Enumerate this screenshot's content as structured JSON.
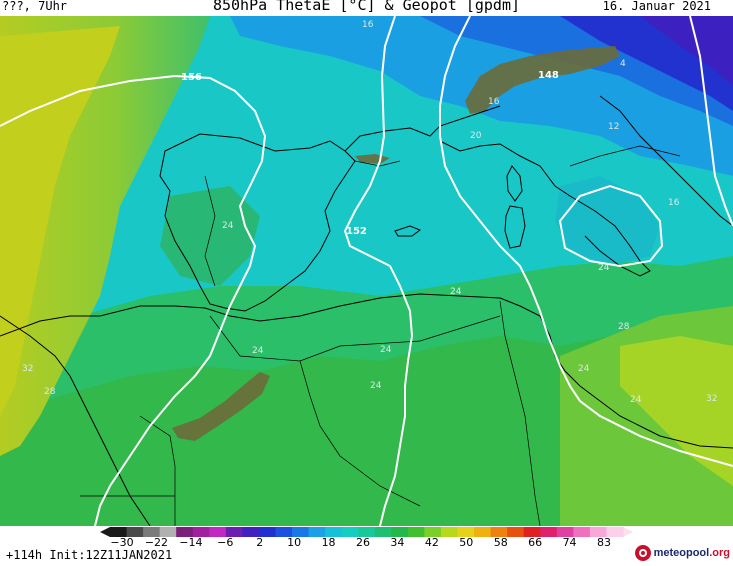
{
  "header": {
    "left": "???, 7Uhr",
    "title": "850hPa ThetaE [°C] & Geopot [gpdm]",
    "date": "16. Januar 2021"
  },
  "footer": {
    "run_info": "+114h Init:12Z11JAN2021",
    "logo_main": "meteopool",
    "logo_suffix": ".org"
  },
  "colorbar": {
    "labels": [
      "−30",
      "−22",
      "−14",
      "−6",
      "2",
      "10",
      "18",
      "26",
      "34",
      "42",
      "50",
      "58",
      "66",
      "74",
      "83"
    ],
    "colors": [
      "#1a1a1a",
      "#4a4a4a",
      "#7a7a7a",
      "#b0b0b0",
      "#7a1f7a",
      "#a020a0",
      "#c02ac0",
      "#6a1fb0",
      "#4020c0",
      "#2030d0",
      "#1c50e0",
      "#1a78e6",
      "#1aa0e6",
      "#16c0d8",
      "#14cfc0",
      "#18c89a",
      "#1cc070",
      "#22b84c",
      "#40c030",
      "#7ad028",
      "#b8d820",
      "#e6d218",
      "#f0b010",
      "#f08010",
      "#e85010",
      "#e02020",
      "#e0206a",
      "#e040a0",
      "#f070c0",
      "#f8a8d8",
      "#fcd0e8"
    ]
  },
  "map_labels": {
    "geopotential": [
      "156",
      "152",
      "148"
    ],
    "thetae": [
      "16",
      "16",
      "20",
      "12",
      "4",
      "16",
      "24",
      "24",
      "24",
      "24",
      "24",
      "24",
      "24",
      "24",
      "28",
      "28",
      "32",
      "32"
    ]
  }
}
